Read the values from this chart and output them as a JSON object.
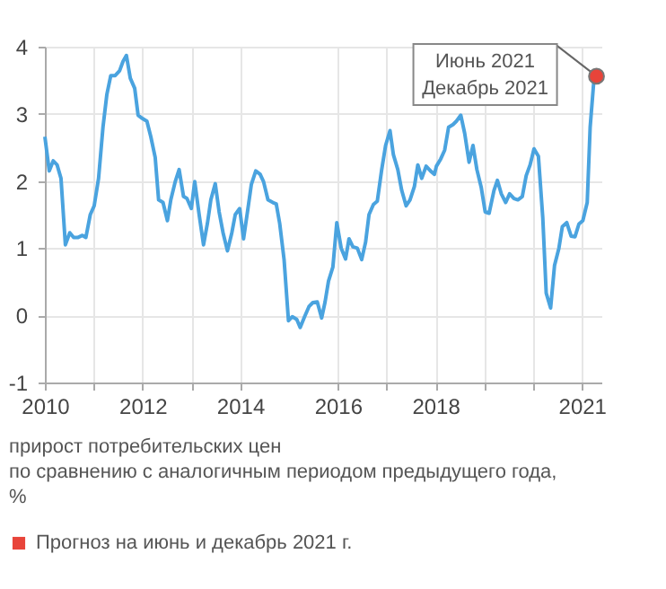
{
  "chart_data": {
    "type": "line",
    "xlim": [
      2010,
      2021.4
    ],
    "ylim": [
      -1,
      4
    ],
    "xticks": [
      2010,
      {
        "value": 2011,
        "label": null
      },
      2012,
      {
        "value": 2013,
        "label": null
      },
      2014,
      2016,
      {
        "value": 2017,
        "label": null
      },
      2018,
      {
        "value": 2019,
        "label": null
      },
      {
        "value": 2020,
        "label": null
      },
      2021
    ],
    "yticks": [
      -1,
      0,
      1,
      2,
      3,
      4
    ],
    "grid": true,
    "legend": "bottom",
    "annotations": [
      "прирост потребительских цен\nпо сравнению с аналогичным периодом предыдущего года,\n%",
      {
        "text": "Июнь 2021\nДекабрь 2021",
        "x": 2021.3,
        "y": 3.56
      }
    ],
    "series": [
      {
        "color": "#4aa3df",
        "x": [
          2010,
          2010.09,
          2010.17,
          2010.25,
          2010.33,
          2010.42,
          2010.51,
          2010.59,
          2010.68,
          2010.77,
          2010.84,
          2010.93,
          2011.01,
          2011.1,
          2011.19,
          2011.27,
          2011.35,
          2011.44,
          2011.53,
          2011.6,
          2011.67,
          2011.75,
          2011.84,
          2011.91,
          2012,
          2012.09,
          2012.17,
          2012.26,
          2012.33,
          2012.42,
          2012.51,
          2012.58,
          2012.67,
          2012.75,
          2012.84,
          2012.91,
          2013,
          2013.07,
          2013.16,
          2013.25,
          2013.33,
          2013.4,
          2013.49,
          2013.57,
          2013.65,
          2013.74,
          2013.83,
          2013.9,
          2013.99,
          2014.07,
          2014.16,
          2014.23,
          2014.32,
          2014.41,
          2014.48,
          2014.57,
          2014.67,
          2014.74,
          2014.81,
          2014.9,
          2014.99,
          2015.07,
          2015.16,
          2015.23,
          2015.32,
          2015.41,
          2015.49,
          2015.58,
          2015.67,
          2015.74,
          2015.81,
          2015.9,
          2015.98,
          2016.07,
          2016.16,
          2016.23,
          2016.31,
          2016.4,
          2016.49,
          2016.57,
          2016.64,
          2016.73,
          2016.81,
          2016.9,
          2016.98,
          2017.07,
          2017.14,
          2017.23,
          2017.31,
          2017.4,
          2017.48,
          2017.57,
          2017.64,
          2017.72,
          2017.81,
          2017.9,
          2017.98,
          2018.02,
          2018.11,
          2018.19,
          2018.27,
          2018.36,
          2018.43,
          2018.52,
          2018.6,
          2018.69,
          2018.77,
          2018.85,
          2018.94,
          2019.02,
          2019.1,
          2019.2,
          2019.27,
          2019.35,
          2019.44,
          2019.52,
          2019.61,
          2019.69,
          2019.78,
          2019.86,
          2019.94,
          2020.02,
          2020.11,
          2020.2,
          2020.27,
          2020.36,
          2020.44,
          2020.53,
          2020.6,
          2020.69,
          2020.78,
          2020.86,
          2020.94,
          2021.02,
          2021.11,
          2021.17,
          2021.25,
          2021.3
        ],
        "values": [
          2.66,
          2.15,
          2.3,
          2.24,
          2.04,
          1.05,
          1.23,
          1.16,
          1.16,
          1.19,
          1.16,
          1.5,
          1.63,
          2.04,
          2.8,
          3.29,
          3.57,
          3.57,
          3.64,
          3.78,
          3.87,
          3.53,
          3.38,
          2.98,
          2.93,
          2.89,
          2.66,
          2.35,
          1.72,
          1.68,
          1.41,
          1.72,
          1.99,
          2.17,
          1.77,
          1.74,
          1.59,
          1.99,
          1.5,
          1.05,
          1.37,
          1.72,
          1.96,
          1.54,
          1.23,
          0.96,
          1.23,
          1.5,
          1.59,
          1.14,
          1.59,
          1.95,
          2.15,
          2.1,
          1.99,
          1.72,
          1.68,
          1.66,
          1.37,
          0.83,
          -0.08,
          -0.02,
          -0.06,
          -0.18,
          -0.02,
          0.13,
          0.19,
          0.2,
          -0.04,
          0.2,
          0.51,
          0.72,
          1.38,
          1.0,
          0.84,
          1.14,
          1.02,
          1.0,
          0.83,
          1.09,
          1.5,
          1.65,
          1.7,
          2.17,
          2.53,
          2.75,
          2.39,
          2.17,
          1.86,
          1.63,
          1.72,
          1.92,
          2.24,
          2.04,
          2.22,
          2.15,
          2.1,
          2.22,
          2.33,
          2.46,
          2.8,
          2.84,
          2.89,
          2.98,
          2.71,
          2.28,
          2.53,
          2.17,
          1.9,
          1.54,
          1.52,
          1.86,
          2.01,
          1.81,
          1.68,
          1.81,
          1.74,
          1.72,
          1.77,
          2.08,
          2.24,
          2.48,
          2.37,
          1.45,
          0.33,
          0.11,
          0.74,
          1.0,
          1.32,
          1.38,
          1.18,
          1.17,
          1.36,
          1.41,
          1.68,
          2.8,
          3.53,
          3.56
        ]
      },
      {
        "type": "scatter",
        "name": "Прогноз на июнь и декабрь 2021 г.",
        "color": "#e8443a",
        "x": [
          2021.3
        ],
        "values": [
          3.56
        ]
      }
    ]
  }
}
